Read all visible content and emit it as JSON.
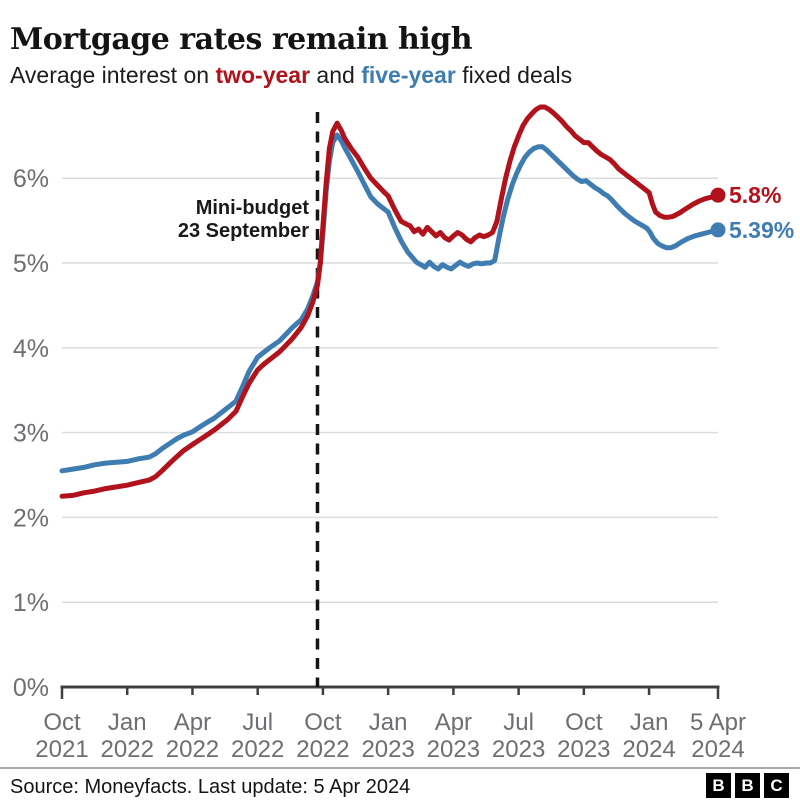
{
  "header": {
    "title": "Mortgage rates remain high",
    "subtitle": {
      "part1": "Average interest on ",
      "two_year": "two-year",
      "part2": " and ",
      "five_year": "five-year",
      "part3": " fixed deals"
    }
  },
  "colors": {
    "two_year": "#b1121b",
    "five_year": "#3e7cb1",
    "axis_text": "#6e6e73",
    "gridline": "#dcdcdc",
    "axis_line": "#3f3f3f",
    "dashed_line": "#151515"
  },
  "chart_data": {
    "type": "line",
    "x_unit": "months since Oct 2021",
    "x_range": [
      0,
      30.17
    ],
    "y_range": [
      0,
      7.05
    ],
    "grid": true,
    "y_ticks": [
      {
        "v": 0,
        "label": "0%"
      },
      {
        "v": 1,
        "label": "1%"
      },
      {
        "v": 2,
        "label": "2%"
      },
      {
        "v": 3,
        "label": "3%"
      },
      {
        "v": 4,
        "label": "4%"
      },
      {
        "v": 5,
        "label": "5%"
      },
      {
        "v": 6,
        "label": "6%"
      }
    ],
    "x_ticks": [
      {
        "t": 0,
        "line1": "Oct",
        "line2": "2021"
      },
      {
        "t": 3,
        "line1": "Jan",
        "line2": "2022"
      },
      {
        "t": 6,
        "line1": "Apr",
        "line2": "2022"
      },
      {
        "t": 9,
        "line1": "Jul",
        "line2": "2022"
      },
      {
        "t": 12,
        "line1": "Oct",
        "line2": "2022"
      },
      {
        "t": 15,
        "line1": "Jan",
        "line2": "2023"
      },
      {
        "t": 18,
        "line1": "Apr",
        "line2": "2023"
      },
      {
        "t": 21,
        "line1": "Jul",
        "line2": "2023"
      },
      {
        "t": 24,
        "line1": "Oct",
        "line2": "2023"
      },
      {
        "t": 27,
        "line1": "Jan",
        "line2": "2024"
      },
      {
        "t": 30.17,
        "line1": "5 Apr",
        "line2": "2024"
      }
    ],
    "annotation": {
      "line1": "Mini-budget",
      "line2": "23 September",
      "t": 11.75
    },
    "series": [
      {
        "name": "five-year",
        "color_key": "five_year",
        "end_label": "5.39%",
        "end_value": 5.39,
        "points": [
          [
            0,
            2.55
          ],
          [
            0.5,
            2.57
          ],
          [
            1,
            2.59
          ],
          [
            1.5,
            2.62
          ],
          [
            2,
            2.64
          ],
          [
            2.5,
            2.65
          ],
          [
            3,
            2.66
          ],
          [
            3.5,
            2.69
          ],
          [
            4,
            2.71
          ],
          [
            4.3,
            2.75
          ],
          [
            4.6,
            2.81
          ],
          [
            5,
            2.88
          ],
          [
            5.3,
            2.93
          ],
          [
            5.6,
            2.97
          ],
          [
            6,
            3.01
          ],
          [
            6.3,
            3.06
          ],
          [
            6.6,
            3.11
          ],
          [
            7,
            3.17
          ],
          [
            7.3,
            3.23
          ],
          [
            7.6,
            3.29
          ],
          [
            8,
            3.37
          ],
          [
            8.3,
            3.54
          ],
          [
            8.6,
            3.72
          ],
          [
            9,
            3.89
          ],
          [
            9.3,
            3.95
          ],
          [
            9.6,
            4.01
          ],
          [
            10,
            4.08
          ],
          [
            10.3,
            4.16
          ],
          [
            10.6,
            4.24
          ],
          [
            11,
            4.33
          ],
          [
            11.3,
            4.46
          ],
          [
            11.55,
            4.62
          ],
          [
            11.75,
            4.78
          ],
          [
            11.88,
            5.0
          ],
          [
            12,
            5.35
          ],
          [
            12.15,
            5.85
          ],
          [
            12.3,
            6.2
          ],
          [
            12.45,
            6.42
          ],
          [
            12.65,
            6.51
          ],
          [
            12.85,
            6.44
          ],
          [
            13,
            6.36
          ],
          [
            13.3,
            6.22
          ],
          [
            13.6,
            6.08
          ],
          [
            13.9,
            5.93
          ],
          [
            14.2,
            5.78
          ],
          [
            14.5,
            5.7
          ],
          [
            14.8,
            5.64
          ],
          [
            15,
            5.6
          ],
          [
            15.3,
            5.42
          ],
          [
            15.6,
            5.26
          ],
          [
            15.9,
            5.13
          ],
          [
            16.1,
            5.07
          ],
          [
            16.3,
            5.01
          ],
          [
            16.5,
            4.98
          ],
          [
            16.7,
            4.95
          ],
          [
            16.9,
            5.01
          ],
          [
            17.1,
            4.96
          ],
          [
            17.3,
            4.93
          ],
          [
            17.5,
            4.98
          ],
          [
            17.7,
            4.95
          ],
          [
            17.9,
            4.93
          ],
          [
            18.1,
            4.97
          ],
          [
            18.3,
            5.01
          ],
          [
            18.5,
            4.98
          ],
          [
            18.7,
            4.96
          ],
          [
            18.9,
            4.99
          ],
          [
            19.1,
            5.0
          ],
          [
            19.3,
            4.99
          ],
          [
            19.5,
            5.0
          ],
          [
            19.7,
            5.0
          ],
          [
            19.9,
            5.03
          ],
          [
            20.1,
            5.3
          ],
          [
            20.3,
            5.55
          ],
          [
            20.5,
            5.75
          ],
          [
            20.7,
            5.92
          ],
          [
            20.9,
            6.05
          ],
          [
            21.1,
            6.16
          ],
          [
            21.3,
            6.25
          ],
          [
            21.5,
            6.31
          ],
          [
            21.7,
            6.35
          ],
          [
            21.9,
            6.37
          ],
          [
            22.1,
            6.37
          ],
          [
            22.3,
            6.33
          ],
          [
            22.5,
            6.28
          ],
          [
            22.7,
            6.23
          ],
          [
            22.9,
            6.18
          ],
          [
            23.1,
            6.13
          ],
          [
            23.3,
            6.08
          ],
          [
            23.5,
            6.03
          ],
          [
            23.7,
            5.99
          ],
          [
            23.9,
            5.96
          ],
          [
            24.1,
            5.97
          ],
          [
            24.3,
            5.93
          ],
          [
            24.5,
            5.89
          ],
          [
            24.7,
            5.86
          ],
          [
            24.9,
            5.82
          ],
          [
            25.1,
            5.79
          ],
          [
            25.3,
            5.74
          ],
          [
            25.5,
            5.68
          ],
          [
            25.7,
            5.63
          ],
          [
            25.9,
            5.58
          ],
          [
            26.1,
            5.54
          ],
          [
            26.3,
            5.5
          ],
          [
            26.5,
            5.47
          ],
          [
            26.7,
            5.44
          ],
          [
            26.9,
            5.41
          ],
          [
            27.05,
            5.36
          ],
          [
            27.2,
            5.29
          ],
          [
            27.4,
            5.23
          ],
          [
            27.6,
            5.2
          ],
          [
            27.8,
            5.18
          ],
          [
            28,
            5.18
          ],
          [
            28.2,
            5.2
          ],
          [
            28.5,
            5.25
          ],
          [
            28.8,
            5.29
          ],
          [
            29.1,
            5.32
          ],
          [
            29.4,
            5.34
          ],
          [
            29.7,
            5.36
          ],
          [
            30,
            5.38
          ],
          [
            30.17,
            5.39
          ]
        ]
      },
      {
        "name": "two-year",
        "color_key": "two_year",
        "end_label": "5.8%",
        "end_value": 5.8,
        "points": [
          [
            0,
            2.25
          ],
          [
            0.5,
            2.26
          ],
          [
            1,
            2.29
          ],
          [
            1.5,
            2.31
          ],
          [
            2,
            2.34
          ],
          [
            2.5,
            2.36
          ],
          [
            3,
            2.38
          ],
          [
            3.5,
            2.41
          ],
          [
            4,
            2.44
          ],
          [
            4.3,
            2.48
          ],
          [
            4.6,
            2.55
          ],
          [
            5,
            2.65
          ],
          [
            5.3,
            2.72
          ],
          [
            5.6,
            2.79
          ],
          [
            6,
            2.86
          ],
          [
            6.3,
            2.91
          ],
          [
            6.6,
            2.96
          ],
          [
            7,
            3.03
          ],
          [
            7.3,
            3.09
          ],
          [
            7.6,
            3.15
          ],
          [
            8,
            3.25
          ],
          [
            8.3,
            3.42
          ],
          [
            8.6,
            3.58
          ],
          [
            9,
            3.74
          ],
          [
            9.3,
            3.81
          ],
          [
            9.6,
            3.87
          ],
          [
            10,
            3.95
          ],
          [
            10.3,
            4.03
          ],
          [
            10.6,
            4.11
          ],
          [
            11,
            4.24
          ],
          [
            11.3,
            4.38
          ],
          [
            11.55,
            4.55
          ],
          [
            11.75,
            4.74
          ],
          [
            11.88,
            5.0
          ],
          [
            12,
            5.43
          ],
          [
            12.15,
            5.95
          ],
          [
            12.3,
            6.35
          ],
          [
            12.45,
            6.55
          ],
          [
            12.65,
            6.65
          ],
          [
            12.85,
            6.56
          ],
          [
            13,
            6.47
          ],
          [
            13.3,
            6.35
          ],
          [
            13.6,
            6.25
          ],
          [
            13.9,
            6.12
          ],
          [
            14.2,
            6.0
          ],
          [
            14.5,
            5.92
          ],
          [
            14.8,
            5.84
          ],
          [
            15,
            5.79
          ],
          [
            15.3,
            5.63
          ],
          [
            15.6,
            5.49
          ],
          [
            15.9,
            5.45
          ],
          [
            16,
            5.44
          ],
          [
            16.2,
            5.37
          ],
          [
            16.4,
            5.4
          ],
          [
            16.6,
            5.34
          ],
          [
            16.8,
            5.42
          ],
          [
            17,
            5.37
          ],
          [
            17.2,
            5.32
          ],
          [
            17.4,
            5.36
          ],
          [
            17.6,
            5.3
          ],
          [
            17.8,
            5.27
          ],
          [
            18,
            5.32
          ],
          [
            18.2,
            5.36
          ],
          [
            18.4,
            5.33
          ],
          [
            18.6,
            5.28
          ],
          [
            18.8,
            5.25
          ],
          [
            19,
            5.3
          ],
          [
            19.2,
            5.33
          ],
          [
            19.4,
            5.31
          ],
          [
            19.6,
            5.33
          ],
          [
            19.8,
            5.36
          ],
          [
            20,
            5.49
          ],
          [
            20.2,
            5.75
          ],
          [
            20.4,
            6.0
          ],
          [
            20.6,
            6.2
          ],
          [
            20.8,
            6.37
          ],
          [
            21,
            6.5
          ],
          [
            21.2,
            6.62
          ],
          [
            21.4,
            6.7
          ],
          [
            21.6,
            6.76
          ],
          [
            21.8,
            6.81
          ],
          [
            22,
            6.84
          ],
          [
            22.2,
            6.84
          ],
          [
            22.4,
            6.81
          ],
          [
            22.6,
            6.77
          ],
          [
            22.8,
            6.72
          ],
          [
            23,
            6.67
          ],
          [
            23.2,
            6.61
          ],
          [
            23.4,
            6.56
          ],
          [
            23.6,
            6.5
          ],
          [
            23.8,
            6.46
          ],
          [
            24,
            6.42
          ],
          [
            24.2,
            6.42
          ],
          [
            24.4,
            6.37
          ],
          [
            24.6,
            6.32
          ],
          [
            24.8,
            6.28
          ],
          [
            25,
            6.25
          ],
          [
            25.2,
            6.22
          ],
          [
            25.4,
            6.17
          ],
          [
            25.6,
            6.11
          ],
          [
            25.8,
            6.07
          ],
          [
            26,
            6.03
          ],
          [
            26.2,
            5.99
          ],
          [
            26.4,
            5.95
          ],
          [
            26.6,
            5.91
          ],
          [
            26.8,
            5.87
          ],
          [
            27,
            5.83
          ],
          [
            27.15,
            5.7
          ],
          [
            27.3,
            5.6
          ],
          [
            27.5,
            5.56
          ],
          [
            27.7,
            5.54
          ],
          [
            27.9,
            5.54
          ],
          [
            28.1,
            5.55
          ],
          [
            28.4,
            5.59
          ],
          [
            28.7,
            5.64
          ],
          [
            29,
            5.69
          ],
          [
            29.3,
            5.73
          ],
          [
            29.6,
            5.76
          ],
          [
            29.9,
            5.78
          ],
          [
            30.17,
            5.8
          ]
        ]
      }
    ]
  },
  "footer": {
    "source": "Source: Moneyfacts. Last update: 5 Apr 2024",
    "logo_letters": [
      "B",
      "B",
      "C"
    ]
  }
}
